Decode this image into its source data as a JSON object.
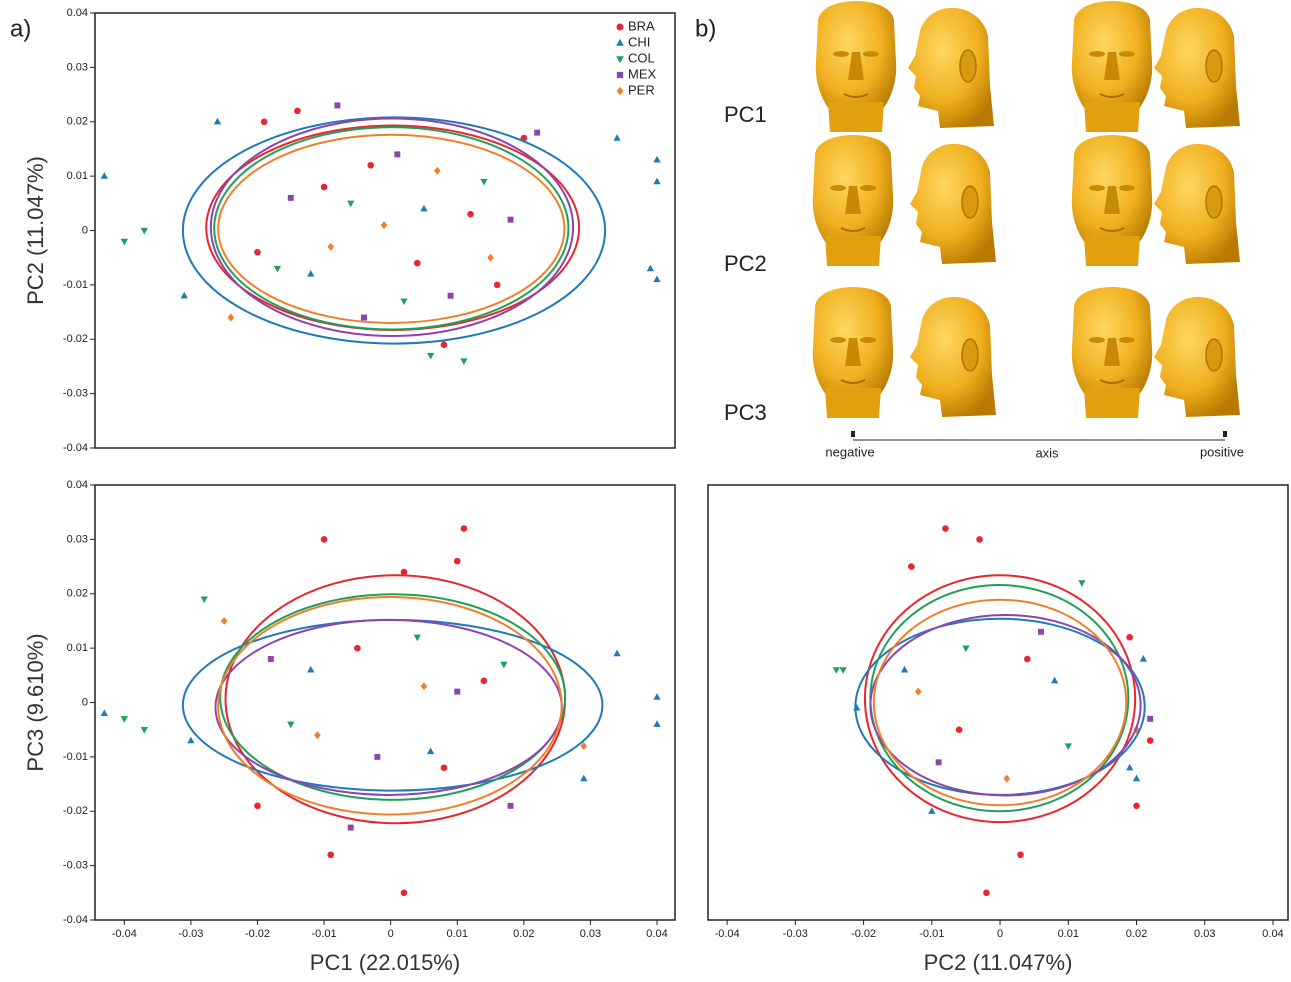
{
  "panel_labels": {
    "a": "a)",
    "b": "b)"
  },
  "shape_panel": {
    "rows": [
      "PC1",
      "PC2",
      "PC3"
    ],
    "negative": "negative",
    "axis": "axis",
    "positive": "positive"
  },
  "chart_data": [
    {
      "type": "scatter",
      "ylabel": "PC2 (11.047%)",
      "legend": "upper right",
      "xlim": [
        -0.0444,
        0.0427
      ],
      "ylim": [
        -0.04,
        0.04
      ],
      "yticks": [
        -0.04,
        -0.03,
        -0.02,
        -0.01,
        0,
        0.01,
        0.02,
        0.03,
        0.04
      ],
      "series": [
        {
          "name": "BRA",
          "color": "#e8262c",
          "marker": "o",
          "x": [
            -0.014,
            -0.019,
            0.02,
            0.008,
            -0.01,
            0.004,
            0.012,
            -0.003,
            0.016,
            -0.02
          ],
          "y": [
            0.022,
            0.02,
            0.017,
            -0.021,
            0.008,
            -0.006,
            0.003,
            0.012,
            -0.01,
            -0.004
          ],
          "ellipse": {
            "cx": 0.0003,
            "cy": 0.0005,
            "rx": 0.028,
            "ry": 0.0188
          }
        },
        {
          "name": "CHI",
          "color": "#1f7ab8",
          "marker": "^",
          "x": [
            -0.043,
            0.034,
            0.04,
            0.04,
            0.039,
            0.04,
            -0.026,
            -0.031,
            0.005,
            -0.012
          ],
          "y": [
            0.01,
            0.017,
            0.013,
            0.009,
            -0.007,
            -0.009,
            0.02,
            -0.012,
            0.004,
            -0.008
          ],
          "ellipse": {
            "cx": 0.0005,
            "cy": 0.0,
            "rx": 0.0317,
            "ry": 0.0208
          }
        },
        {
          "name": "COL",
          "color": "#1fa05a",
          "marker": "v",
          "x": [
            -0.04,
            -0.037,
            0.006,
            0.011,
            -0.006,
            0.014,
            -0.017,
            0.002
          ],
          "y": [
            -0.002,
            0.0,
            -0.023,
            -0.024,
            0.005,
            0.009,
            -0.007,
            -0.013
          ],
          "ellipse": {
            "cx": 0.0001,
            "cy": 0.0004,
            "rx": 0.0266,
            "ry": 0.0186
          }
        },
        {
          "name": "MEX",
          "color": "#8e44ad",
          "marker": "s",
          "x": [
            0.022,
            -0.008,
            -0.015,
            0.009,
            0.001,
            0.018,
            -0.004
          ],
          "y": [
            0.018,
            0.023,
            0.006,
            -0.012,
            0.014,
            0.002,
            -0.016
          ],
          "ellipse": {
            "cx": 0.0002,
            "cy": 0.0006,
            "rx": 0.0272,
            "ry": 0.02
          }
        },
        {
          "name": "PER",
          "color": "#f07f2a",
          "marker": "D",
          "x": [
            -0.024,
            0.007,
            -0.009,
            0.015,
            -0.001
          ],
          "y": [
            -0.016,
            0.011,
            -0.003,
            -0.005,
            0.001
          ],
          "ellipse": {
            "cx": 0.0001,
            "cy": 0.0003,
            "rx": 0.026,
            "ry": 0.0173
          }
        }
      ]
    },
    {
      "type": "scatter",
      "xlabel": "PC1 (22.015%)",
      "ylabel": "PC3 (9.610%)",
      "xlim": [
        -0.0444,
        0.0427
      ],
      "ylim": [
        -0.04,
        0.04
      ],
      "xticks": [
        -0.04,
        -0.03,
        -0.02,
        -0.01,
        0,
        0.01,
        0.02,
        0.03,
        0.04
      ],
      "yticks": [
        -0.04,
        -0.03,
        -0.02,
        -0.01,
        0,
        0.01,
        0.02,
        0.03,
        0.04
      ],
      "series": [
        {
          "color": "#e8262c",
          "marker": "o",
          "x": [
            0.011,
            -0.01,
            0.01,
            -0.009,
            0.002,
            -0.02,
            0.002,
            -0.005,
            0.008,
            0.014
          ],
          "y": [
            0.032,
            0.03,
            0.026,
            -0.028,
            -0.035,
            -0.019,
            0.024,
            0.01,
            -0.012,
            0.004
          ],
          "ellipse": {
            "cx": 0.0007,
            "cy": 0.0006,
            "rx": 0.0255,
            "ry": 0.0228
          }
        },
        {
          "color": "#1f7ab8",
          "marker": "^",
          "x": [
            -0.043,
            0.034,
            0.04,
            0.04,
            -0.03,
            0.029,
            -0.012,
            0.006
          ],
          "y": [
            -0.002,
            0.009,
            0.001,
            -0.004,
            -0.007,
            -0.014,
            0.006,
            -0.009
          ],
          "ellipse": {
            "cx": 0.0003,
            "cy": -0.0005,
            "rx": 0.0315,
            "ry": 0.0157
          }
        },
        {
          "color": "#1fa05a",
          "marker": "v",
          "x": [
            -0.04,
            -0.037,
            -0.028,
            0.004,
            -0.015,
            0.017
          ],
          "y": [
            -0.003,
            -0.005,
            0.019,
            0.012,
            -0.004,
            0.007
          ],
          "ellipse": {
            "cx": 0.0003,
            "cy": 0.001,
            "rx": 0.0259,
            "ry": 0.0189
          }
        },
        {
          "color": "#8e44ad",
          "marker": "s",
          "x": [
            -0.006,
            0.018,
            -0.018,
            0.01,
            -0.002
          ],
          "y": [
            -0.023,
            -0.019,
            0.008,
            0.002,
            -0.01
          ],
          "ellipse": {
            "cx": -0.0003,
            "cy": -0.0009,
            "rx": 0.026,
            "ry": 0.0161
          }
        },
        {
          "color": "#f07f2a",
          "marker": "D",
          "x": [
            -0.025,
            0.029,
            0.005,
            -0.011
          ],
          "y": [
            0.015,
            -0.008,
            0.003,
            -0.006
          ],
          "ellipse": {
            "cx": -0.0001,
            "cy": -0.0006,
            "rx": 0.0258,
            "ry": 0.02
          }
        }
      ]
    },
    {
      "type": "scatter",
      "xlabel": "PC2 (11.047%)",
      "xlim": [
        -0.0428,
        0.0422
      ],
      "ylim": [
        -0.04,
        0.04
      ],
      "xticks": [
        -0.04,
        -0.03,
        -0.02,
        -0.01,
        0,
        0.01,
        0.02,
        0.03,
        0.04
      ],
      "series": [
        {
          "color": "#e8262c",
          "marker": "o",
          "x": [
            -0.008,
            -0.003,
            -0.013,
            0.003,
            -0.002,
            0.02,
            0.022,
            0.019,
            0.004,
            -0.006
          ],
          "y": [
            0.032,
            0.03,
            0.025,
            -0.028,
            -0.035,
            -0.019,
            -0.007,
            0.012,
            0.008,
            -0.005
          ],
          "ellipse": {
            "cx": 0.0,
            "cy": 0.0007,
            "rx": 0.0198,
            "ry": 0.0227
          }
        },
        {
          "color": "#1f7ab8",
          "marker": "^",
          "x": [
            -0.021,
            0.021,
            0.02,
            0.019,
            -0.01,
            0.008,
            -0.014
          ],
          "y": [
            -0.001,
            0.008,
            -0.014,
            -0.012,
            -0.02,
            0.004,
            0.006
          ],
          "ellipse": {
            "cx": 0.0,
            "cy": -0.0008,
            "rx": 0.0212,
            "ry": 0.0162
          }
        },
        {
          "color": "#1fa05a",
          "marker": "v",
          "x": [
            -0.024,
            -0.023,
            0.012,
            -0.005,
            0.01
          ],
          "y": [
            0.006,
            0.006,
            0.022,
            0.01,
            -0.008
          ],
          "ellipse": {
            "cx": -0.0001,
            "cy": 0.0008,
            "rx": 0.0189,
            "ry": 0.0208
          }
        },
        {
          "color": "#8e44ad",
          "marker": "s",
          "x": [
            0.022,
            -0.009,
            0.006
          ],
          "y": [
            -0.003,
            -0.011,
            0.013
          ],
          "ellipse": {
            "cx": 0.0008,
            "cy": -0.0005,
            "rx": 0.0198,
            "ry": 0.0166
          }
        },
        {
          "color": "#f07f2a",
          "marker": "D",
          "x": [
            0.02,
            -0.012,
            0.001
          ],
          "y": [
            -0.005,
            0.002,
            -0.014
          ],
          "ellipse": {
            "cx": 0.0,
            "cy": 0.0,
            "rx": 0.0185,
            "ry": 0.0189
          }
        }
      ]
    }
  ]
}
